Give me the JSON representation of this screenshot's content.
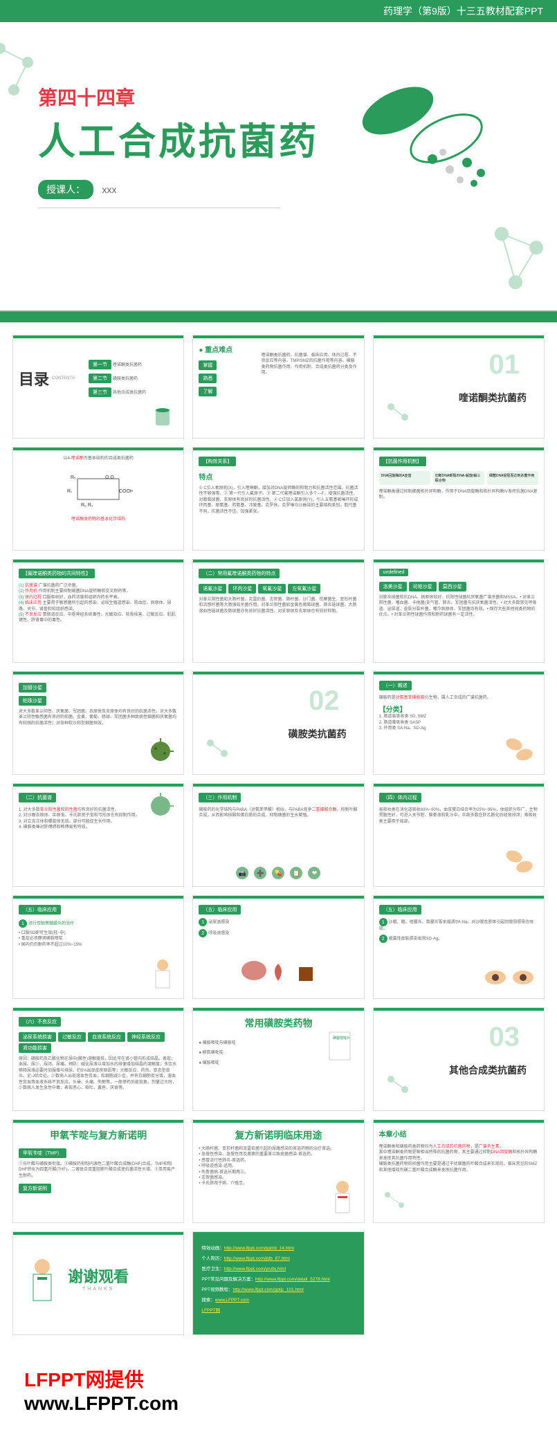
{
  "colors": {
    "primary_green": "#2b9b5c",
    "accent_red": "#e63946",
    "light_green": "#c8e6d4",
    "bg": "#ffffff",
    "text_gray": "#666666"
  },
  "header": {
    "text": "药理学（第9版）十三五教材配套PPT"
  },
  "main_slide": {
    "chapter_label": "第四十四章",
    "title": "人工合成抗菌药",
    "instructor_label": "授课人：",
    "instructor_name": "xxx"
  },
  "thumbs": [
    {
      "type": "toc",
      "title": "目录",
      "subtitle": "CONTENTS",
      "items": [
        {
          "n": "第一节",
          "t": "喹诺酮类抗菌药"
        },
        {
          "n": "第二节",
          "t": "磺胺类抗菌药"
        },
        {
          "n": "第三节",
          "t": "其他合成类抗菌药"
        }
      ]
    },
    {
      "type": "points",
      "title": "重点难点",
      "labels": [
        "掌握",
        "熟悉",
        "了解"
      ],
      "text": "喹诺酮类抗菌药、抗菌谱、临床应用、体内过程、不良反应等内容。TMP/SMZ的抗菌作用等内容。磺胺类药物抗菌作用、作用机制、合成类抗菌药分类及作用。"
    },
    {
      "type": "section",
      "num": "01",
      "title": "喹诺酮类抗菌药"
    },
    {
      "type": "content",
      "header": "以4-喹诺酮为基本结构的合成类抗菌药",
      "subtitle": "喹诺酮类药物的基本化学结构",
      "has_structure": true
    },
    {
      "type": "content2",
      "box1": "【构效关系】",
      "box2_title": "特点",
      "text": "① C位入氧原则(X)，引入喹啉酮，增加对DNA旋转酶的抑制力和抗菌活性范围，抗菌活性不够强等。② 第一代引入氟原子。③ 第二代氟喹诺酮引入多个—F，增强抗菌活性，对葡萄球菌、支原体有良好的抗菌活性。④ C位加入氯原则(Y)，引入五氨基哌嗪环形成环丙基、原氨基、肟氨基、泮胺基、克罗体、克罗嗪与沙曲诺的主要结构差别，取代基不同，抗菌活性不佳，加强紧张。"
    },
    {
      "type": "content2",
      "box1": "【抗菌作用机制】",
      "flow_items": [
        "DNA回旋酶的A亚基",
        "切断DNA断裂/DNA-解旋/解三联合物",
        "细菌DNA受阻而达到杀菌作用"
      ],
      "text": "喹诺酮类通过抑制细菌拓扑异构酶，作用于DNA回旋酶和拓扑异构酶IV发挥抗菌DNA复制。"
    },
    {
      "type": "list",
      "box1": "【氟喹诺酮类药物的共同特性】",
      "items": [
        {
          "n": "(1)",
          "label": "抗菌谱",
          "t": "广谱抗菌药广泛杀菌。"
        },
        {
          "n": "(2)",
          "label": "作用机",
          "t": "作用机制主要抑制细菌DNA旋转酶和交叉耐药等。"
        },
        {
          "n": "(3)",
          "label": "体内过程",
          "t": "口服吸收好，血药浓度和组织内药水平高。"
        },
        {
          "n": "(4)",
          "label": "临床应用",
          "t": "主要用于敏感菌所引起的感染、泌尿生殖道感染、败血症、病原体、尿路、关节、肾管和软组织感染。"
        },
        {
          "n": "(5)",
          "label": "不良反应",
          "t": "胃肠道反应、中枢神经系统毒性、光敏效应、软骨损害、过敏反应、肌肌键性、肝肾毒中的毒性。"
        }
      ]
    },
    {
      "type": "list",
      "box1": "（二）常用氟喹诺酮类药物的特点",
      "labels": [
        "诺氟沙星",
        "环丙沙星",
        "氧氟沙星",
        "左氧氟沙星"
      ],
      "text": "对革兰阴性菌如大肠杆菌、克雷伯菌、志贺菌、肠杆菌、沙门菌、伤寒菌生、变形杆菌和流感杆菌等大肠强效杀菌作用。对革兰阳性菌如金黄色葡萄球菌、肺炎链球菌、大肠溶血性链球菌及肠球菌亦有良好抗菌活性。对支原体及衣原体也有较好抑制。"
    },
    {
      "type": "list",
      "labels": [
        "洛美沙星",
        "司帕沙星",
        "莫西沙星"
      ],
      "text": "对肺炎球菌和抗DNA、病原体较好，抗阳性球菌抗厌氧菌广谱杀菌和MSSA。• 对革兰阳性菌、嗜血菌、卡他菌(支气管、肺炎、军团菌与抗厌氧菌活性。• 对大多数常见呼吸道、泌尿道、皮肤分裂杆菌、嗜冷病原体、军团菌均有效。• 保存大些其他同类药物的优点。• 对革兰阴性球菌作用和耐药球菌有一定活性。"
    },
    {
      "type": "list2",
      "labels": [
        "加替沙星",
        "帕珠沙星"
      ],
      "text": "对大多数革兰阴性、厌氧菌、军团菌、衣原体及支原体均有良好的抗菌活性。对大多数革兰阴性敏感菌有良好的抑菌。金黄、葡萄、肠球、军团菌多种致病性细菌和厌氧菌均有较强的抗菌活性；对各种软沙和型细菌恒效。",
      "has_virus_img": true
    },
    {
      "type": "section",
      "num": "02",
      "title": "磺胺类抗菌药"
    },
    {
      "type": "content3",
      "box1": "（一）概述",
      "text": "磺胺药是对氨基苯磺酰胺衍生物，属人工合成的广谱抗菌药。",
      "subtitle": "【分类】",
      "items": [
        "1. 肠道易吸收类  SD, SMZ",
        "2. 肠道难吸收类  SASP",
        "3. 外用类  SA-Na、SD-Ag"
      ],
      "has_bacteria_img": true
    },
    {
      "type": "list3",
      "box1": "（二）抗菌谱",
      "items": [
        "1. 对大多数革兰阳性菌和阴性菌均有良好的抗菌活性。",
        "2. 对沙眼衣原体、疟原虫、卡氏肺孢子虫和弓形体也有抑制作用。",
        "3. 对立克次体和螺旋体无效。部分可能促生长作用。",
        "4. 磺胺类嗪对肝傅绣和韩傅易有特效。"
      ],
      "has_virus_img": true
    },
    {
      "type": "content3",
      "box1": "（三）作用机制",
      "text": "磺胺药的化学结构与PABA（对氨苯甲酸）相似，与PABA竞争二氢蝶酸合酶，抑制叶酸合成，从而影响核酸和蛋白质的合成，抑制细菌的生长繁殖。",
      "has_icons": true
    },
    {
      "type": "content3",
      "box1": "（四）体内过程",
      "text": "易吸收类在消化道吸收80%~90%，血浆蛋白结合率为25%~95%，体组织分布广，生物贯脆性好，可进入关节腔、脑脊液和乳汁中。华病多数在肝乙酰化后经肾排泄；难吸收类主要用于局部。",
      "has_bacteria_img": true
    },
    {
      "type": "content4",
      "box1": "（五）临床应用",
      "bullet": "流行性脑脊髓膜炎的治疗",
      "text": "• 口服SD即可生效(轻~中)\n• 重症必须静滴磺胺嘧啶\n• 国内仍仍耐药率不超过10%~15%",
      "has_doctor_img": true
    },
    {
      "type": "content4",
      "box1": "（五）临床应用",
      "bullets": [
        "泌尿道感染",
        "呼吸道感染"
      ],
      "has_organ_img": true
    },
    {
      "type": "content4",
      "box1": "（五）临床应用",
      "bullets": [
        "沙眼、眼、结膜炎、角膜炎等末端滴SA-Na。对沙眼衣原体引起的眼部感染也有效。",
        "细菌性皮肤感染常用SD-Ag。"
      ],
      "has_eye_img": true
    },
    {
      "type": "list",
      "box1": "（六）不良反应",
      "labels": [
        "泌尿系统损害",
        "过敏反应",
        "血液系统反应",
        "神经系统反应",
        "肾功能损害"
      ],
      "text": "原因：磺胺药及乙酰化物在尿中(酸性)溶解度低，因此可在肾小管内形成结晶。表现：血尿、尿少、尿闭、尿痛。预防：碱化尿液以增加水的排便增加结晶的溶解度；多饮水稀释尿液必要时加服增与排尿。约5%出现皮疹原因等；光敏反应、药热、变态型皮炎、史-J综合征。少数病人出现溶血性贫血，粒细胞减少症，并有白细胞百分增，溶血性贫血等血液系统不良反应。头晕、头痛、失眠等，一般停药后能恢复。剂量过大时，少数病人发生急性中毒，表现恶心、呕吐、黄疸、厌食等。"
    },
    {
      "type": "content5",
      "title": "常用磺胺类药物",
      "items": [
        "磺胺嘧啶与磺胺啶",
        "柳氮磺吡啶",
        "磺胺嘧啶"
      ],
      "has_pill_img": true
    },
    {
      "type": "section",
      "num": "03",
      "title": "其他合成类抗菌药"
    },
    {
      "type": "content6",
      "title": "甲氧苄啶与复方新诺明",
      "box1": "甲氧苄啶（TMP）",
      "box2": "复方新诺明",
      "text": "①与叶酸与磺胺类衔接。②磺胺药抑制内源性二氢叶酸合成酶(DHF)合成，TMP抑制DHF转化为四氢叶酸(THF)，二者联合双重阻断叶酸合成使抗菌活性大增。③单用易产生耐药。"
    },
    {
      "type": "content7",
      "title": "复方新诺明临床用途",
      "items": [
        "大肠杆菌、变形杆菌和克雷伯菌引起的尿路感染的首选药物的治疗首选。",
        "急慢性感染、急慢性耳及鼻窦的重要革兰致病菌感染-首选药。",
        "感冒流行性肺炎-首选药。",
        "呼吸道感染-适用。",
        "布鲁菌病-首选长期两三。",
        "志贺菌感染。",
        "卡氏肺孢子病、介殖至。"
      ],
      "has_doctor_img": true
    },
    {
      "type": "content8",
      "title": "本章小结",
      "text": "喹诺酮类和磺胺药类药物均为人工合成的抗菌药物，是广谱杀生素。\n其中喹诺酮类药物是种相当特殊的抗菌药物，其主要通过抑制DNA回旋酶和拓扑异构酶来发挥其抗菌作用特性。\n磺胺类抗菌药物的抑菌作用主要是通过干扰细菌的叶酸合成来实现的，临床常见的SMZ和其他增效剂磺二氢叶酸合成酶来发挥抗菌作用。"
    },
    {
      "type": "thanks",
      "title": "谢谢观看",
      "subtitle": "THANKS",
      "has_doctor_img": true
    },
    {
      "type": "links",
      "items": [
        {
          "label": "特效动画：",
          "url": "http://www.lfppt.com/pptnb_14.html"
        },
        {
          "label": "个人简历：",
          "url": "http://www.lfppt.com/jldb_67.html"
        },
        {
          "label": "医疗卫生：",
          "url": "http://www.lfppt.com/ynzbj.html"
        },
        {
          "label": "PPT常见问题及解决方案：",
          "url": "http://www.lfppt.com/detail_5278.html"
        },
        {
          "label": "PPT视频教程：",
          "url": "http://www.lfppt.com/pptjc_101.html"
        },
        {
          "label": "搜索：",
          "url": "www.LFPPT.com"
        },
        {
          "label": "",
          "url": "LFPPT网"
        }
      ]
    }
  ],
  "watermark": {
    "line1": "LFPPT网提供",
    "line2": "www.LFPPT.com"
  }
}
